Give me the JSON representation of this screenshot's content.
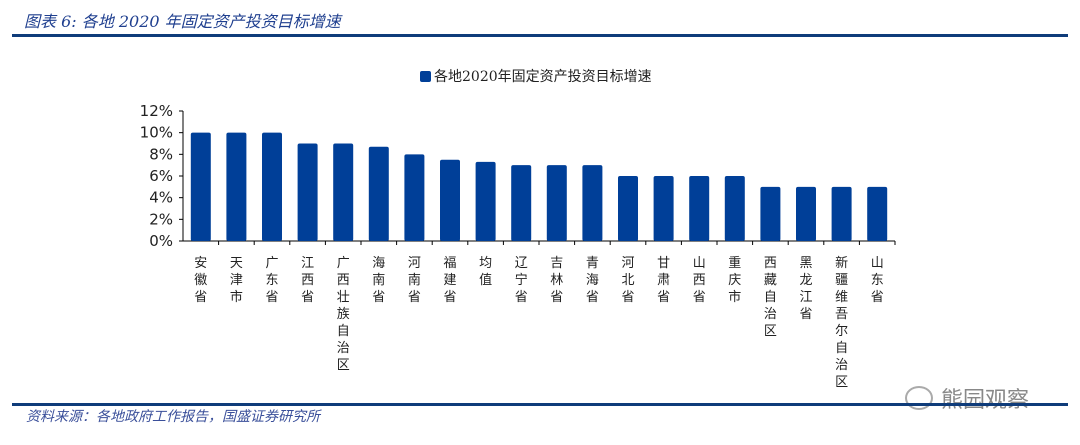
{
  "title": "图表 6:  各地 2020 年固定资产投资目标增速",
  "source": "资料来源：各地政府工作报告，国盛证券研究所",
  "watermark": "熊园观察",
  "chart_data": {
    "type": "bar",
    "title": "",
    "legend": [
      "各地2020年固定资产投资目标增速"
    ],
    "legend_position": "top-center",
    "categories": [
      "安徽省",
      "天津市",
      "广东省",
      "江西省",
      "广西壮族自治区",
      "海南省",
      "河南省",
      "福建省",
      "均值",
      "辽宁省",
      "吉林省",
      "青海省",
      "河北省",
      "甘肃省",
      "山西省",
      "重庆市",
      "西藏自治区",
      "黑龙江省",
      "新疆维吾尔自治区",
      "山东省"
    ],
    "series": [
      {
        "name": "各地2020年固定资产投资目标增速",
        "values": [
          10,
          10,
          10,
          9,
          9,
          8.7,
          8,
          7.5,
          7.3,
          7,
          7,
          7,
          6,
          6,
          6,
          6,
          5,
          5,
          5,
          5
        ],
        "color": "#003f98"
      }
    ],
    "yticks": [
      "0%",
      "2%",
      "4%",
      "6%",
      "8%",
      "10%",
      "12%"
    ],
    "ylim": [
      0,
      12
    ],
    "grid": false
  }
}
